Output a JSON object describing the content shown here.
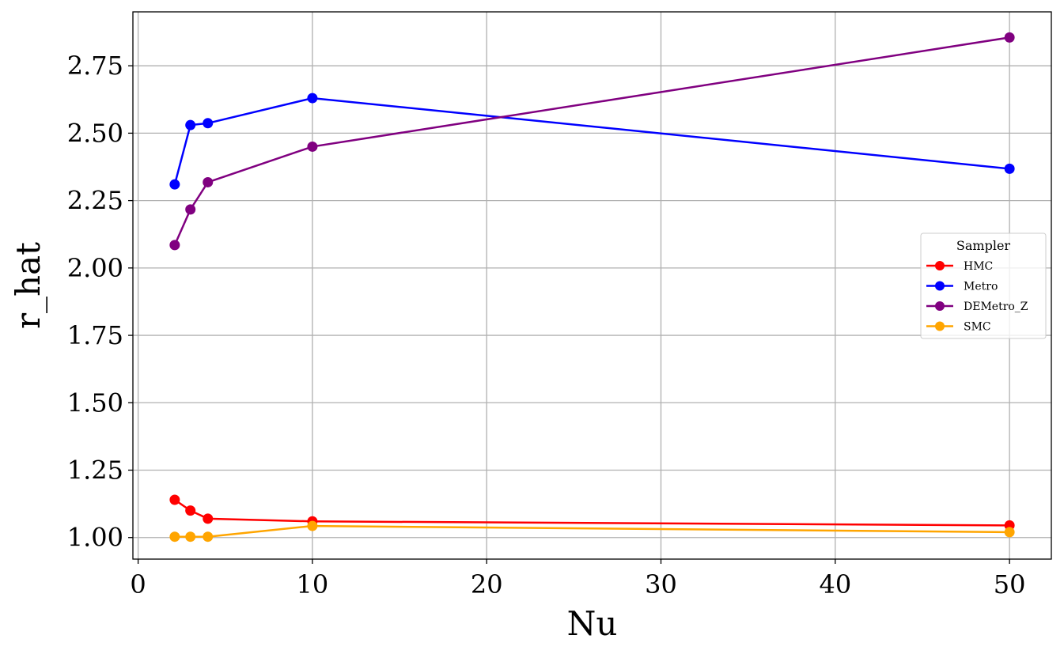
{
  "chart_data": {
    "type": "line",
    "title": "",
    "xlabel": "Nu",
    "ylabel": "r_hat",
    "xlim": [
      -0.3,
      52.4
    ],
    "ylim": [
      0.92,
      2.95
    ],
    "xticks": [
      0,
      10,
      20,
      30,
      40,
      50
    ],
    "xtick_labels": [
      "0",
      "10",
      "20",
      "30",
      "40",
      "50"
    ],
    "yticks": [
      1.0,
      1.25,
      1.5,
      1.75,
      2.0,
      2.25,
      2.5,
      2.75
    ],
    "ytick_labels": [
      "1.00",
      "1.25",
      "1.50",
      "1.75",
      "2.00",
      "2.25",
      "2.50",
      "2.75"
    ],
    "grid": true,
    "legend": {
      "title": "Sampler",
      "position": "center-right"
    },
    "x": [
      2.1,
      3,
      4,
      10,
      50
    ],
    "series": [
      {
        "name": "HMC",
        "color": "#ff0000",
        "values": [
          1.14,
          1.1,
          1.07,
          1.06,
          1.045
        ]
      },
      {
        "name": "Metro",
        "color": "#0000ff",
        "values": [
          2.31,
          2.53,
          2.537,
          2.63,
          2.368
        ]
      },
      {
        "name": "DEMetro_Z",
        "color": "#800080",
        "values": [
          2.085,
          2.217,
          2.318,
          2.45,
          2.855
        ]
      },
      {
        "name": "SMC",
        "color": "#ffa500",
        "values": [
          1.003,
          1.003,
          1.003,
          1.043,
          1.02
        ]
      }
    ]
  }
}
